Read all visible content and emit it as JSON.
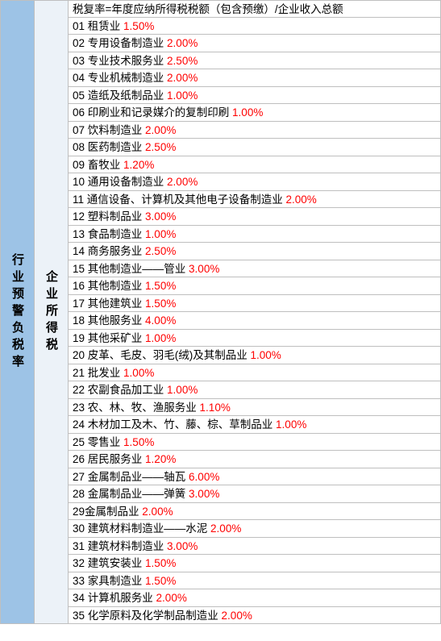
{
  "leftHeader": "行业预警负税率",
  "midHeader": "企业所得税",
  "formula": "税复率=年度应纳所得税税额（包含预缴）/企业收入总额",
  "rows": [
    {
      "num": "01",
      "label": "租赁业",
      "rate": "1.50%"
    },
    {
      "num": "02",
      "label": "专用设备制造业",
      "rate": "2.00%"
    },
    {
      "num": "03",
      "label": "专业技术服务业",
      "rate": "2.50%"
    },
    {
      "num": "04",
      "label": "专业机械制造业",
      "rate": "2.00%"
    },
    {
      "num": "05",
      "label": "造纸及纸制品业",
      "rate": "1.00%"
    },
    {
      "num": "06",
      "label": "印刷业和记录媒介的复制印刷",
      "rate": "1.00%"
    },
    {
      "num": "07",
      "label": "饮料制造业",
      "rate": "2.00%"
    },
    {
      "num": "08",
      "label": "医药制造业",
      "rate": "2.50%"
    },
    {
      "num": "09",
      "label": "畜牧业",
      "rate": "1.20%"
    },
    {
      "num": "10",
      "label": "通用设备制造业",
      "rate": "2.00%"
    },
    {
      "num": "11",
      "label": "通信设备、计算机及其他电子设备制造业",
      "rate": "2.00%"
    },
    {
      "num": "12",
      "label": "塑料制品业",
      "rate": "3.00%"
    },
    {
      "num": "13",
      "label": "食品制造业",
      "rate": "1.00%"
    },
    {
      "num": "14",
      "label": "商务服务业",
      "rate": "2.50%"
    },
    {
      "num": "15",
      "label": "其他制造业——管业",
      "rate": "3.00%"
    },
    {
      "num": "16",
      "label": "其他制造业",
      "rate": "1.50%"
    },
    {
      "num": "17",
      "label": "其他建筑业",
      "rate": "1.50%"
    },
    {
      "num": "18",
      "label": "其他服务业",
      "rate": "4.00%"
    },
    {
      "num": "19",
      "label": "其他采矿业",
      "rate": "1.00%"
    },
    {
      "num": "20",
      "label": "皮革、毛皮、羽毛(绒)及其制品业",
      "rate": "1.00%"
    },
    {
      "num": "21",
      "label": "批发业",
      "rate": "1.00%"
    },
    {
      "num": "22",
      "label": "农副食品加工业",
      "rate": "1.00%"
    },
    {
      "num": "23",
      "label": "农、林、牧、渔服务业",
      "rate": "1.10%"
    },
    {
      "num": "24",
      "label": "木材加工及木、竹、藤、棕、草制品业",
      "rate": "1.00%"
    },
    {
      "num": "25",
      "label": "零售业",
      "rate": "1.50%"
    },
    {
      "num": "26",
      "label": "居民服务业",
      "rate": "1.20%"
    },
    {
      "num": "27",
      "label": "金属制品业——轴瓦",
      "rate": "6.00%"
    },
    {
      "num": "28",
      "label": "金属制品业——弹簧",
      "rate": "3.00%"
    },
    {
      "num": "29",
      "label": "金属制品业",
      "rate": "2.00%",
      "nospace": true
    },
    {
      "num": "30",
      "label": "建筑材料制造业——水泥",
      "rate": "2.00%"
    },
    {
      "num": "31",
      "label": "建筑材料制造业",
      "rate": "3.00%"
    },
    {
      "num": "32",
      "label": "建筑安装业",
      "rate": "1.50%"
    },
    {
      "num": "33",
      "label": "家具制造业",
      "rate": "1.50%"
    },
    {
      "num": "34",
      "label": "计算机服务业",
      "rate": "2.00%"
    },
    {
      "num": "35",
      "label": "化学原料及化学制品制造业",
      "rate": "2.00%"
    }
  ],
  "colors": {
    "leftBg": "#9dc3e6",
    "midBg": "#ecf2f8",
    "border": "#bfbfbf",
    "rateColor": "#ff0000"
  }
}
